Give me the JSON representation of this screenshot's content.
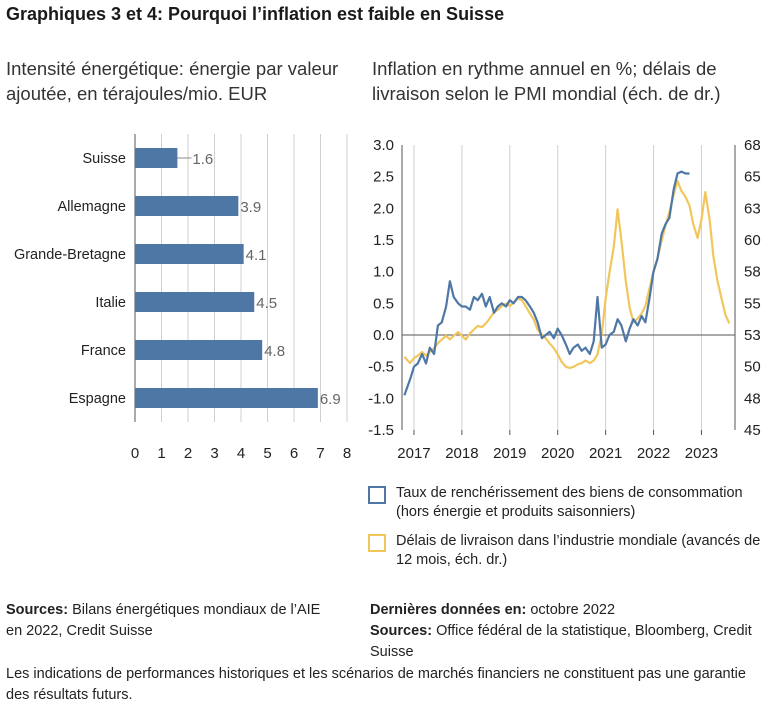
{
  "title": "Graphiques 3 et 4: Pourquoi l’inflation est faible en Suisse",
  "colors": {
    "bar": "#4f77a6",
    "inflation": "#4f77a6",
    "delivery": "#f1c75c",
    "grid": "#cfcfcf"
  },
  "left_chart": {
    "subtitle": "Intensité énergétique: énergie par valeur ajoutée, en térajoules/mio. EUR"
  },
  "right_chart": {
    "subtitle": "Inflation en rythme annuel en %; délais de livraison selon le PMI mondial (éch. de dr.)"
  },
  "legend": {
    "inflation": "Taux de renchérissement des biens de consommation (hors énergie et produits saisonniers)",
    "delivery": "Délais de livraison dans l’industrie mondiale (avancés de 12 mois, éch. dr.)"
  },
  "sources_left": {
    "label": "Sources:",
    "text": "Bilans énergétiques mondiaux de l’AIE en 2022, Credit Suisse"
  },
  "sources_right": {
    "last_label": "Dernières données en:",
    "last_text": "octobre 2022",
    "label": "Sources:",
    "text": "Office fédéral de la statistique, Bloomberg, Credit Suisse"
  },
  "disclaimer": "Les indications de performances historiques et les scénarios de marchés financiers ne constituent pas une garantie des résultats futurs.",
  "chart_data": [
    {
      "type": "bar",
      "orientation": "horizontal",
      "title": "Intensité énergétique: énergie par valeur ajoutée, en térajoules/mio. EUR",
      "categories": [
        "Suisse",
        "Allemagne",
        "Grande-Bretagne",
        "Italie",
        "France",
        "Espagne"
      ],
      "values": [
        1.6,
        3.9,
        4.1,
        4.5,
        4.8,
        6.9
      ],
      "value_labels": [
        "1.6",
        "3.9",
        "4.1",
        "4.5",
        "4.8",
        "6.9"
      ],
      "xlim": [
        0,
        8
      ],
      "xticks": [
        "0",
        "1",
        "2",
        "3",
        "4",
        "5",
        "6",
        "7",
        "8"
      ],
      "grid": "vertical"
    },
    {
      "type": "line",
      "title": "Inflation en rythme annuel en %; délais de livraison selon le PMI mondial (éch. de dr.)",
      "xlim": [
        2016.75,
        2023.7
      ],
      "xticks": [
        "2017",
        "2018",
        "2019",
        "2020",
        "2021",
        "2022",
        "2023"
      ],
      "ylim_left": [
        -1.5,
        3.0
      ],
      "yticks_left": [
        "3.0",
        "2.5",
        "2.0",
        "1.5",
        "1.0",
        "0.5",
        "0.0",
        "-0.5",
        "-1.0",
        "-1.5"
      ],
      "ylim_right": [
        45,
        68
      ],
      "yticks_right": [
        "68",
        "65",
        "63",
        "60",
        "58",
        "55",
        "53",
        "50",
        "48",
        "45"
      ],
      "grid": "vertical",
      "series": [
        {
          "name": "Taux de renchérissement des biens de consommation (hors énergie et produits saisonniers)",
          "axis": "left",
          "points": [
            [
              2016.8,
              -0.95
            ],
            [
              2016.92,
              -0.7
            ],
            [
              2017.0,
              -0.5
            ],
            [
              2017.08,
              -0.45
            ],
            [
              2017.17,
              -0.3
            ],
            [
              2017.25,
              -0.45
            ],
            [
              2017.33,
              -0.2
            ],
            [
              2017.42,
              -0.3
            ],
            [
              2017.5,
              0.15
            ],
            [
              2017.58,
              0.2
            ],
            [
              2017.67,
              0.45
            ],
            [
              2017.75,
              0.85
            ],
            [
              2017.83,
              0.6
            ],
            [
              2017.92,
              0.5
            ],
            [
              2018.0,
              0.45
            ],
            [
              2018.08,
              0.45
            ],
            [
              2018.17,
              0.4
            ],
            [
              2018.25,
              0.6
            ],
            [
              2018.33,
              0.55
            ],
            [
              2018.42,
              0.65
            ],
            [
              2018.5,
              0.45
            ],
            [
              2018.58,
              0.6
            ],
            [
              2018.67,
              0.35
            ],
            [
              2018.75,
              0.45
            ],
            [
              2018.83,
              0.5
            ],
            [
              2018.92,
              0.45
            ],
            [
              2019.0,
              0.55
            ],
            [
              2019.08,
              0.5
            ],
            [
              2019.17,
              0.6
            ],
            [
              2019.25,
              0.6
            ],
            [
              2019.33,
              0.55
            ],
            [
              2019.42,
              0.45
            ],
            [
              2019.5,
              0.35
            ],
            [
              2019.58,
              0.2
            ],
            [
              2019.67,
              -0.05
            ],
            [
              2019.75,
              0.0
            ],
            [
              2019.83,
              0.05
            ],
            [
              2019.92,
              -0.05
            ],
            [
              2020.0,
              0.1
            ],
            [
              2020.08,
              0.0
            ],
            [
              2020.17,
              -0.15
            ],
            [
              2020.25,
              -0.3
            ],
            [
              2020.33,
              -0.2
            ],
            [
              2020.42,
              -0.15
            ],
            [
              2020.5,
              -0.25
            ],
            [
              2020.58,
              -0.2
            ],
            [
              2020.67,
              -0.3
            ],
            [
              2020.75,
              -0.1
            ],
            [
              2020.83,
              0.6
            ],
            [
              2020.92,
              -0.2
            ],
            [
              2021.0,
              -0.15
            ],
            [
              2021.08,
              0.0
            ],
            [
              2021.17,
              0.05
            ],
            [
              2021.25,
              0.25
            ],
            [
              2021.33,
              0.15
            ],
            [
              2021.42,
              -0.1
            ],
            [
              2021.5,
              0.1
            ],
            [
              2021.58,
              0.25
            ],
            [
              2021.67,
              0.15
            ],
            [
              2021.75,
              0.3
            ],
            [
              2021.83,
              0.2
            ],
            [
              2021.92,
              0.6
            ],
            [
              2022.0,
              1.0
            ],
            [
              2022.08,
              1.2
            ],
            [
              2022.17,
              1.6
            ],
            [
              2022.25,
              1.75
            ],
            [
              2022.33,
              1.85
            ],
            [
              2022.42,
              2.3
            ],
            [
              2022.5,
              2.55
            ],
            [
              2022.58,
              2.58
            ],
            [
              2022.67,
              2.55
            ],
            [
              2022.75,
              2.55
            ]
          ]
        },
        {
          "name": "Délais de livraison dans l’industrie mondiale (avancés de 12 mois, éch. dr.)",
          "axis": "right",
          "points": [
            [
              2016.8,
              50.9
            ],
            [
              2016.92,
              50.4
            ],
            [
              2017.0,
              50.8
            ],
            [
              2017.08,
              51.0
            ],
            [
              2017.17,
              51.3
            ],
            [
              2017.25,
              51.0
            ],
            [
              2017.33,
              51.3
            ],
            [
              2017.42,
              51.6
            ],
            [
              2017.5,
              52.0
            ],
            [
              2017.58,
              52.3
            ],
            [
              2017.67,
              52.6
            ],
            [
              2017.75,
              52.3
            ],
            [
              2017.83,
              52.6
            ],
            [
              2017.92,
              52.9
            ],
            [
              2018.0,
              52.6
            ],
            [
              2018.08,
              52.3
            ],
            [
              2018.17,
              52.8
            ],
            [
              2018.25,
              53.1
            ],
            [
              2018.33,
              53.4
            ],
            [
              2018.42,
              53.3
            ],
            [
              2018.5,
              53.6
            ],
            [
              2018.58,
              54.0
            ],
            [
              2018.67,
              54.5
            ],
            [
              2018.75,
              54.7
            ],
            [
              2018.83,
              55.0
            ],
            [
              2018.92,
              55.2
            ],
            [
              2019.0,
              55.0
            ],
            [
              2019.08,
              55.3
            ],
            [
              2019.17,
              55.6
            ],
            [
              2019.25,
              55.5
            ],
            [
              2019.33,
              55.0
            ],
            [
              2019.42,
              54.4
            ],
            [
              2019.5,
              53.9
            ],
            [
              2019.58,
              53.1
            ],
            [
              2019.67,
              52.7
            ],
            [
              2019.75,
              52.4
            ],
            [
              2019.83,
              52.0
            ],
            [
              2019.92,
              51.6
            ],
            [
              2020.0,
              51.1
            ],
            [
              2020.08,
              50.5
            ],
            [
              2020.17,
              50.1
            ],
            [
              2020.25,
              50.0
            ],
            [
              2020.33,
              50.1
            ],
            [
              2020.42,
              50.3
            ],
            [
              2020.5,
              50.4
            ],
            [
              2020.58,
              50.6
            ],
            [
              2020.67,
              50.4
            ],
            [
              2020.75,
              50.6
            ],
            [
              2020.83,
              51.1
            ],
            [
              2020.92,
              52.8
            ],
            [
              2021.0,
              55.6
            ],
            [
              2021.08,
              57.7
            ],
            [
              2021.17,
              59.8
            ],
            [
              2021.25,
              62.8
            ],
            [
              2021.33,
              60.3
            ],
            [
              2021.42,
              57.0
            ],
            [
              2021.5,
              54.9
            ],
            [
              2021.58,
              53.7
            ],
            [
              2021.67,
              54.0
            ],
            [
              2021.75,
              54.4
            ],
            [
              2021.83,
              55.0
            ],
            [
              2021.92,
              56.5
            ],
            [
              2022.0,
              57.8
            ],
            [
              2022.08,
              58.8
            ],
            [
              2022.17,
              60.3
            ],
            [
              2022.25,
              61.5
            ],
            [
              2022.33,
              62.6
            ],
            [
              2022.42,
              64.0
            ],
            [
              2022.5,
              65.1
            ],
            [
              2022.58,
              64.3
            ],
            [
              2022.67,
              63.8
            ],
            [
              2022.75,
              63.1
            ],
            [
              2022.83,
              61.6
            ],
            [
              2022.92,
              60.5
            ],
            [
              2023.0,
              62.0
            ],
            [
              2023.08,
              64.2
            ],
            [
              2023.17,
              62.0
            ],
            [
              2023.25,
              59.0
            ],
            [
              2023.33,
              57.1
            ],
            [
              2023.42,
              55.6
            ],
            [
              2023.5,
              54.3
            ],
            [
              2023.58,
              53.6
            ]
          ]
        }
      ]
    }
  ]
}
